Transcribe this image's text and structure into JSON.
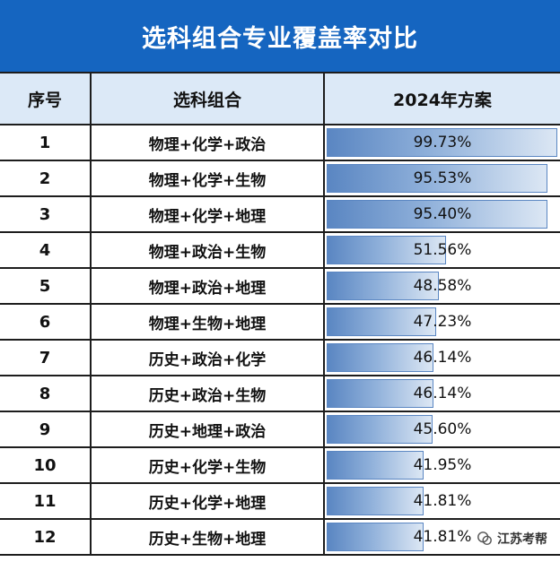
{
  "title": "选科组合专业覆盖率对比",
  "headers": {
    "index": "序号",
    "combo": "选科组合",
    "plan": "2024年方案"
  },
  "watermark": "江苏考帮",
  "colors": {
    "title_bg": "#1565c0",
    "header_bg": "#dce9f7",
    "bar_start": "#5a86c2",
    "bar_end": "#dce7f4"
  },
  "chart_data": {
    "type": "table",
    "columns": [
      "序号",
      "选科组合",
      "2024年方案"
    ],
    "rows": [
      {
        "index": "1",
        "combo": "物理+化学+政治",
        "value": 99.73,
        "label": "99.73%"
      },
      {
        "index": "2",
        "combo": "物理+化学+生物",
        "value": 95.53,
        "label": "95.53%"
      },
      {
        "index": "3",
        "combo": "物理+化学+地理",
        "value": 95.4,
        "label": "95.40%"
      },
      {
        "index": "4",
        "combo": "物理+政治+生物",
        "value": 51.56,
        "label": "51.56%"
      },
      {
        "index": "5",
        "combo": "物理+政治+地理",
        "value": 48.58,
        "label": "48.58%"
      },
      {
        "index": "6",
        "combo": "物理+生物+地理",
        "value": 47.23,
        "label": "47.23%"
      },
      {
        "index": "7",
        "combo": "历史+政治+化学",
        "value": 46.14,
        "label": "46.14%"
      },
      {
        "index": "8",
        "combo": "历史+政治+生物",
        "value": 46.14,
        "label": "46.14%"
      },
      {
        "index": "9",
        "combo": "历史+地理+政治",
        "value": 45.6,
        "label": "45.60%"
      },
      {
        "index": "10",
        "combo": "历史+化学+生物",
        "value": 41.95,
        "label": "41.95%"
      },
      {
        "index": "11",
        "combo": "历史+化学+地理",
        "value": 41.81,
        "label": "41.81%"
      },
      {
        "index": "12",
        "combo": "历史+生物+地理",
        "value": 41.81,
        "label": "41.81%"
      }
    ],
    "value_range": [
      0,
      100
    ]
  }
}
